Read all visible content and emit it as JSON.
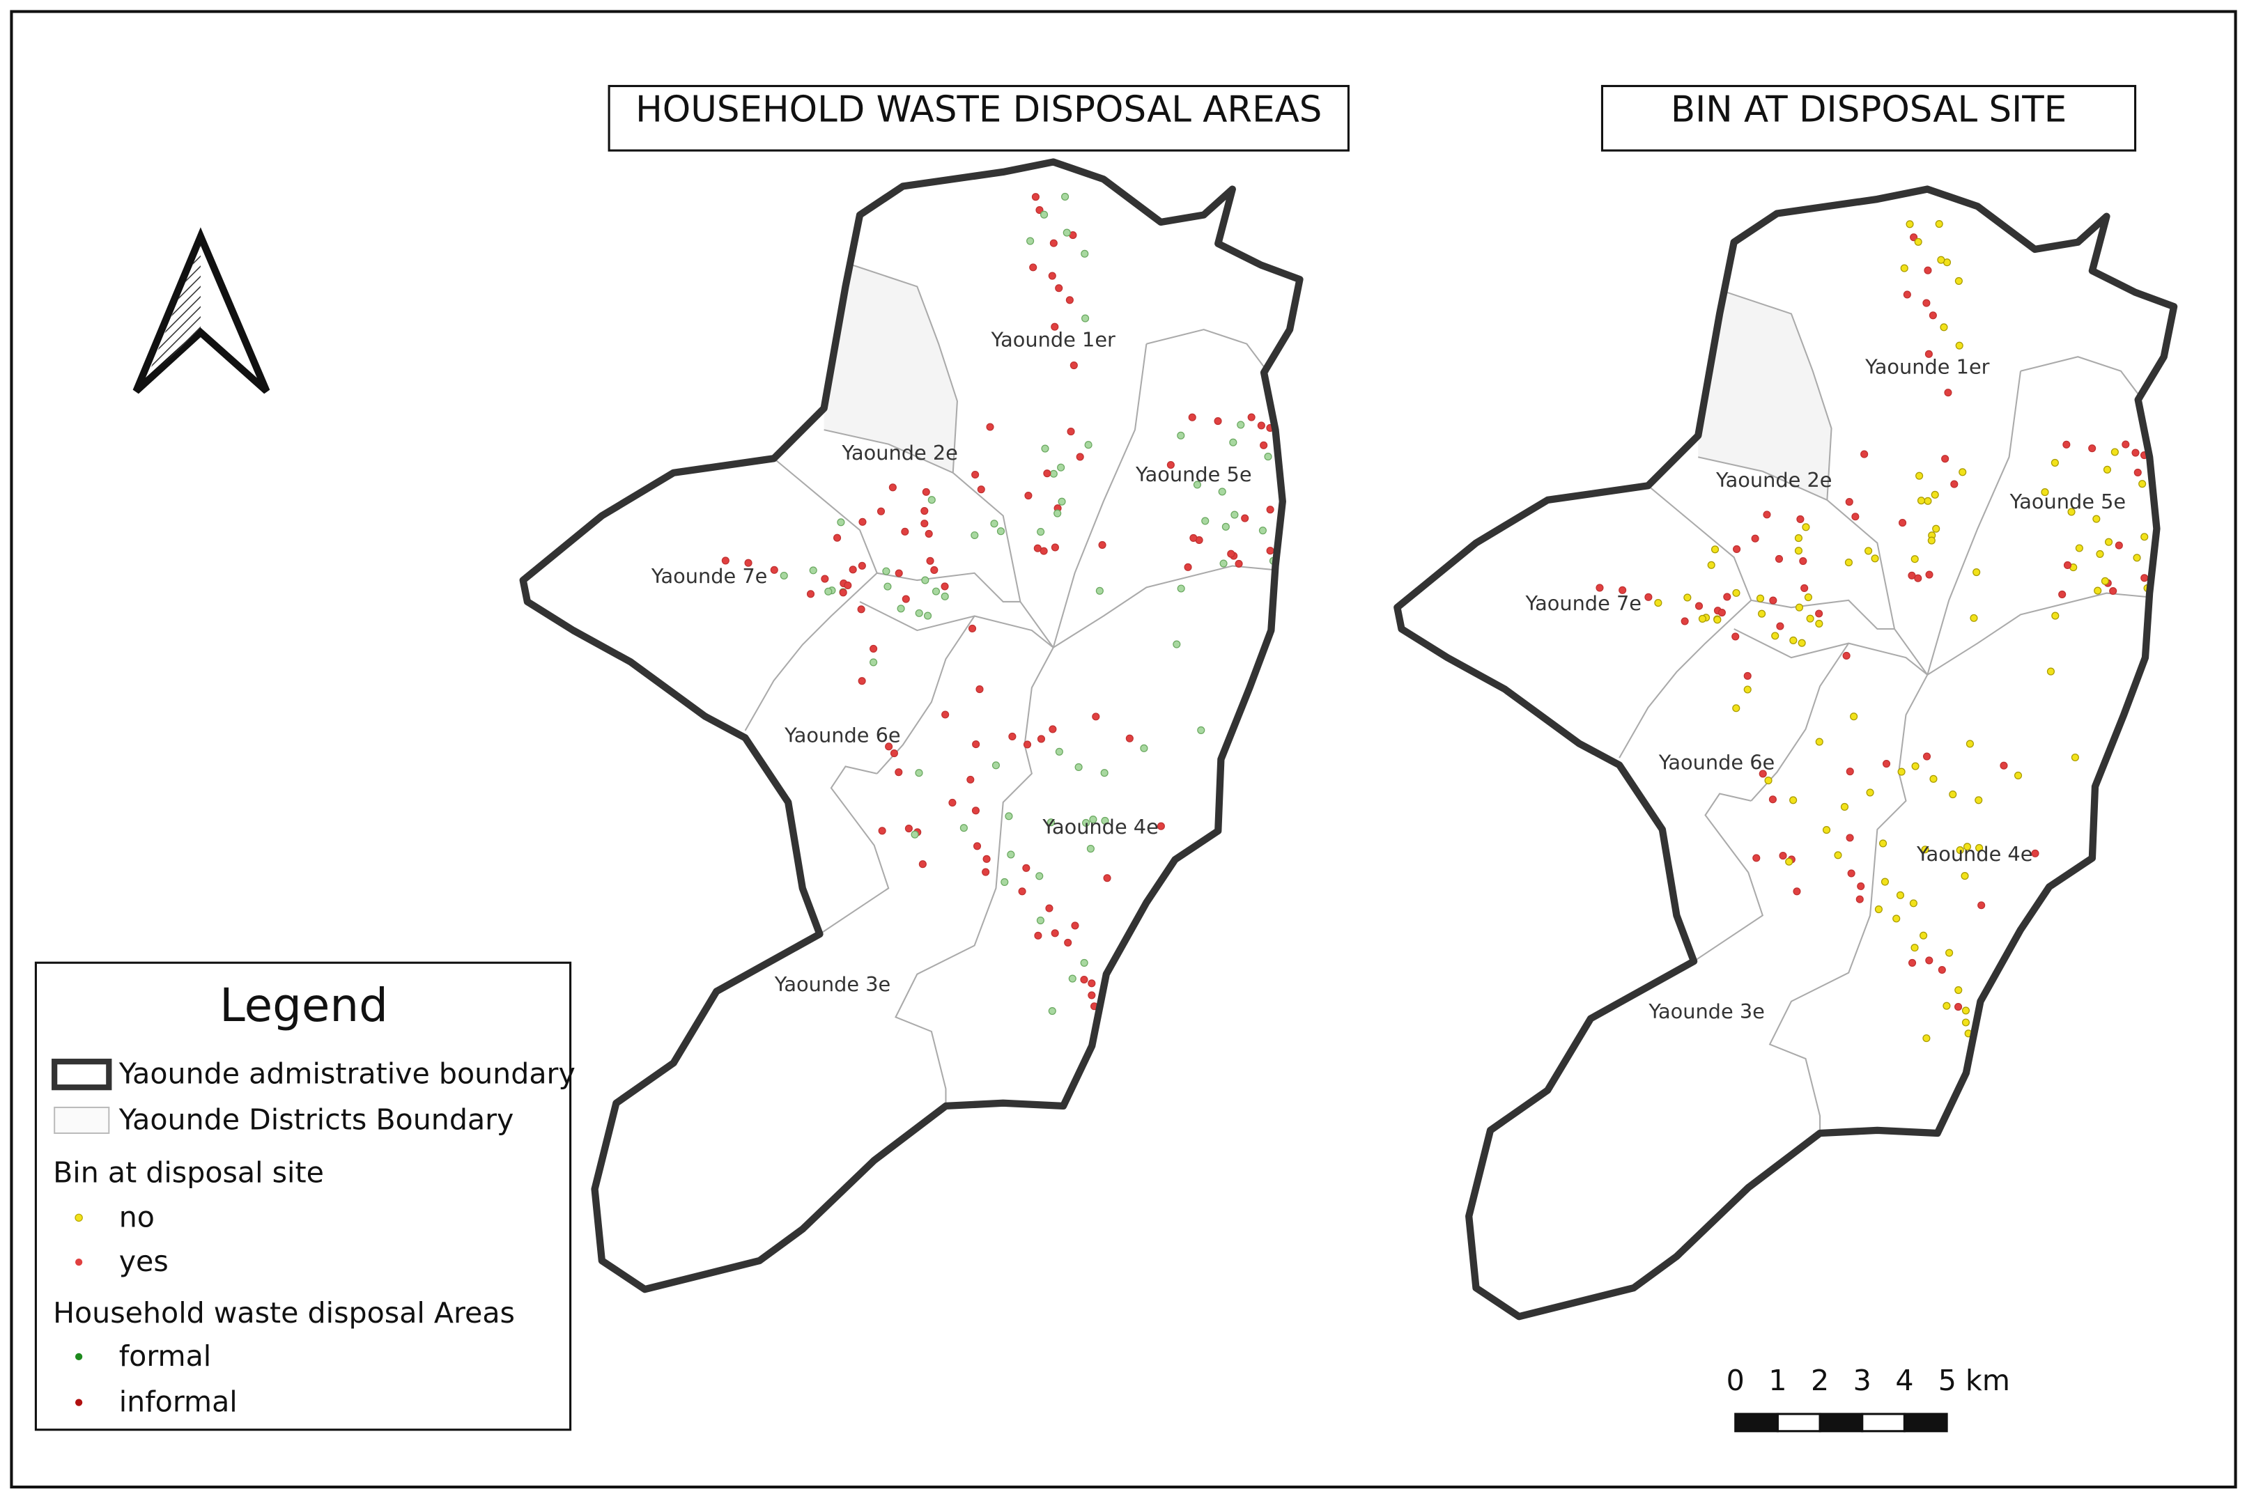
{
  "maps": [
    {
      "title": "HOUSEHOLD WASTE DISPOSAL AREAS",
      "districts": [
        "Yaounde 1er",
        "Yaounde 2e",
        "Yaounde 5e",
        "Yaounde 7e",
        "Yaounde 6e",
        "Yaounde 4e",
        "Yaounde 3e"
      ]
    },
    {
      "title": "BIN AT DISPOSAL SITE",
      "districts": [
        "Yaounde 1er",
        "Yaounde 2e",
        "Yaounde 5e",
        "Yaounde 7e",
        "Yaounde 6e",
        "Yaounde 4e",
        "Yaounde 3e"
      ]
    }
  ],
  "legend": {
    "title": "Legend",
    "boundaries": [
      "Yaounde admistrative boundary",
      "Yaounde Districts Boundary"
    ],
    "groups": [
      {
        "title": "Bin at disposal site",
        "items": [
          "no",
          "yes"
        ]
      },
      {
        "title": "Household waste disposal Areas",
        "items": [
          "formal",
          "informal"
        ]
      }
    ]
  },
  "scale_bar": {
    "labels": [
      "0",
      "1",
      "2",
      "3",
      "4",
      "5 km"
    ]
  }
}
